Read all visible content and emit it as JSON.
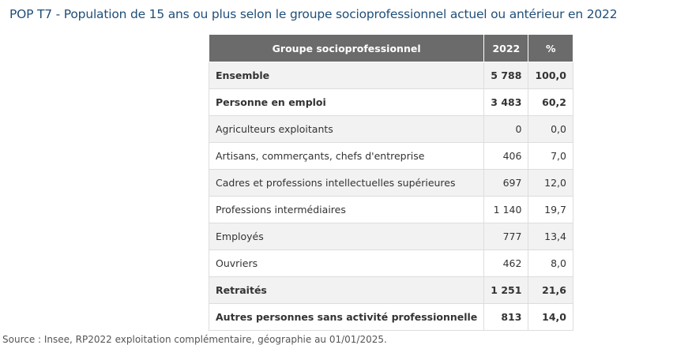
{
  "title": "POP T7 - Population de 15 ans ou plus selon le groupe socioprofessionnel actuel ou antérieur en 2022",
  "table": {
    "headers": [
      "Groupe socioprofessionnel",
      "2022",
      "%"
    ],
    "rows": [
      {
        "label": "Ensemble",
        "value": "5 788",
        "pct": "100,0"
      },
      {
        "label": "Personne en emploi",
        "value": "3 483",
        "pct": "60,2"
      },
      {
        "label": "Agriculteurs exploitants",
        "value": "0",
        "pct": "0,0"
      },
      {
        "label": "Artisans, commerçants, chefs d'entreprise",
        "value": "406",
        "pct": "7,0"
      },
      {
        "label": "Cadres et professions intellectuelles supérieures",
        "value": "697",
        "pct": "12,0"
      },
      {
        "label": "Professions intermédiaires",
        "value": "1 140",
        "pct": "19,7"
      },
      {
        "label": "Employés",
        "value": "777",
        "pct": "13,4"
      },
      {
        "label": "Ouvriers",
        "value": "462",
        "pct": "8,0"
      },
      {
        "label": "Retraités",
        "value": "1 251",
        "pct": "21,6"
      },
      {
        "label": "Autres personnes sans activité professionnelle",
        "value": "813",
        "pct": "14,0"
      }
    ]
  },
  "source": "Source : Insee, RP2022 exploitation complémentaire, géographie au 01/01/2025."
}
